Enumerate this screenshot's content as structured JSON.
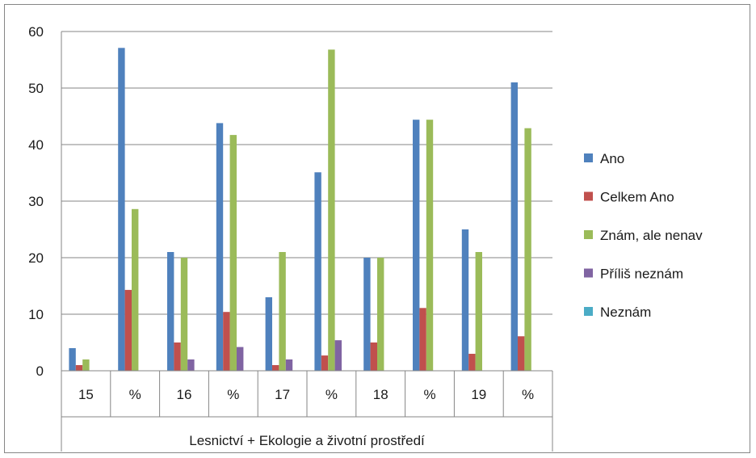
{
  "chart_data": {
    "type": "bar",
    "categories": [
      "15",
      "%",
      "16",
      "%",
      "17",
      "%",
      "18",
      "%",
      "19",
      "%"
    ],
    "group_label": "Lesnictví + Ekologie a životní prostředí",
    "ylim": [
      0,
      60
    ],
    "yticks": [
      0,
      10,
      20,
      30,
      40,
      50,
      60
    ],
    "grid": true,
    "legend_position": "right",
    "series": [
      {
        "name": "Ano",
        "color": "#4f81bd",
        "values": [
          4,
          57.1,
          21,
          43.8,
          13,
          35.1,
          20,
          44.4,
          25,
          51
        ]
      },
      {
        "name": "Celkem Ano",
        "color": "#c0504d",
        "values": [
          1,
          14.3,
          5,
          10.4,
          1,
          2.7,
          5,
          11.1,
          3,
          6.1
        ]
      },
      {
        "name": "Znám, ale nenav",
        "color": "#9bbb59",
        "values": [
          2,
          28.6,
          20,
          41.7,
          21,
          56.8,
          20,
          44.4,
          21,
          42.9
        ]
      },
      {
        "name": "Příliš neznám",
        "color": "#8064a2",
        "values": [
          0,
          0,
          2,
          4.2,
          2,
          5.4,
          0,
          0,
          0,
          0
        ]
      },
      {
        "name": "Neznám",
        "color": "#4bacc6",
        "values": [
          0,
          0,
          0,
          0,
          0,
          0,
          0,
          0,
          0,
          0
        ]
      }
    ]
  }
}
